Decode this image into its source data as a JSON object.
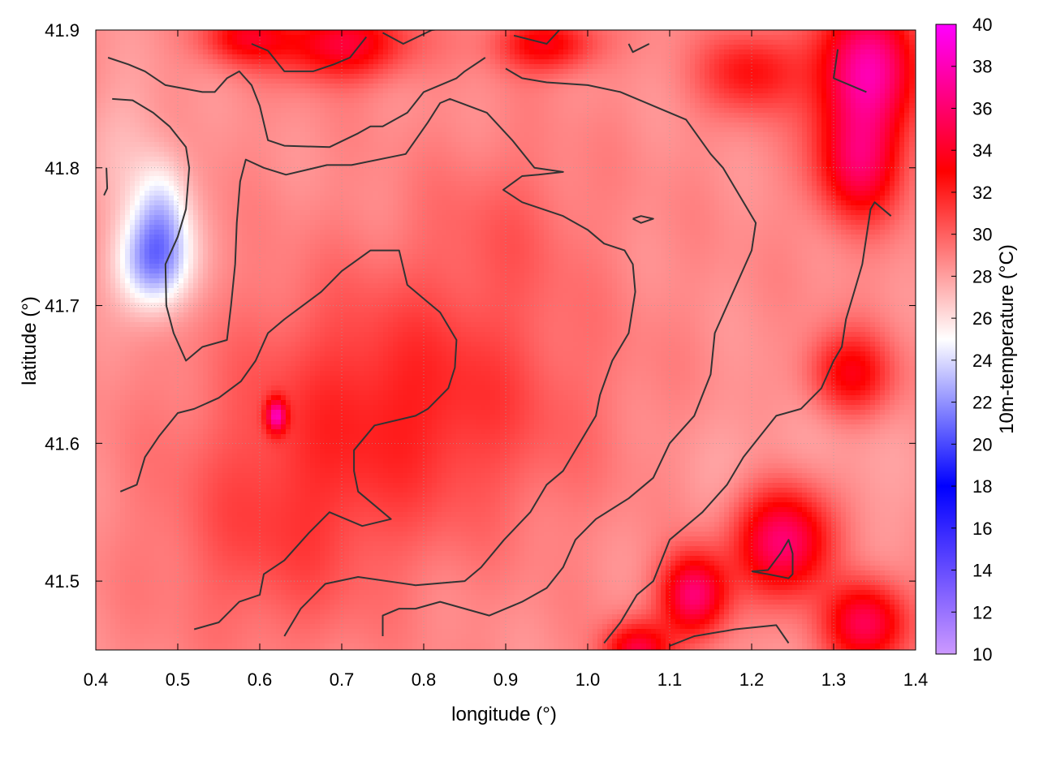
{
  "chart_data": {
    "type": "heatmap",
    "title": "",
    "xlabel": "longitude (°)",
    "ylabel": "latitude (°)",
    "colorbar_label": "10m-temperature (°C)",
    "xlim": [
      0.4,
      1.4
    ],
    "ylim": [
      41.45,
      41.9
    ],
    "x_ticks": [
      0.4,
      0.5,
      0.6,
      0.7,
      0.8,
      0.9,
      1.0,
      1.1,
      1.2,
      1.3,
      1.4
    ],
    "y_ticks": [
      41.5,
      41.6,
      41.7,
      41.8,
      41.9
    ],
    "x_tick_labels": [
      "0.4",
      "0.5",
      "0.6",
      "0.7",
      "0.8",
      "0.9",
      "1.0",
      "1.1",
      "1.2",
      "1.3",
      "1.4"
    ],
    "y_tick_labels": [
      "41.5",
      "41.6",
      "41.7",
      "41.8",
      "41.9"
    ],
    "colorbar_range": [
      10,
      40
    ],
    "colorbar_ticks": [
      10,
      12,
      14,
      16,
      18,
      20,
      22,
      24,
      26,
      28,
      30,
      32,
      34,
      36,
      38,
      40
    ],
    "colorbar_tick_labels": [
      "10",
      "12",
      "14",
      "16",
      "18",
      "20",
      "22",
      "24",
      "26",
      "28",
      "30",
      "32",
      "34",
      "36",
      "38",
      "40"
    ],
    "colorscale": [
      {
        "value": 10,
        "color": "#cc99ff"
      },
      {
        "value": 18,
        "color": "#0000ff"
      },
      {
        "value": 25,
        "color": "#ffffff"
      },
      {
        "value": 33,
        "color": "#ff0000"
      },
      {
        "value": 40,
        "color": "#ff00ff"
      }
    ],
    "grid": true,
    "contour_color": "#333333",
    "contours": [
      {
        "points": [
          [
            0.415,
            41.88
          ],
          [
            0.44,
            41.875
          ],
          [
            0.46,
            41.87
          ],
          [
            0.485,
            41.86
          ],
          [
            0.53,
            41.855
          ],
          [
            0.545,
            41.855
          ],
          [
            0.56,
            41.865
          ],
          [
            0.575,
            41.87
          ],
          [
            0.59,
            41.86
          ],
          [
            0.6,
            41.845
          ],
          [
            0.61,
            41.82
          ],
          [
            0.63,
            41.816
          ],
          [
            0.685,
            41.815
          ],
          [
            0.72,
            41.825
          ],
          [
            0.735,
            41.83
          ],
          [
            0.75,
            41.83
          ],
          [
            0.78,
            41.84
          ],
          [
            0.8,
            41.855
          ],
          [
            0.84,
            41.865
          ],
          [
            0.85,
            41.87
          ],
          [
            0.875,
            41.88
          ]
        ]
      },
      {
        "points": [
          [
            0.42,
            41.85
          ],
          [
            0.445,
            41.849
          ],
          [
            0.47,
            41.84
          ],
          [
            0.49,
            41.83
          ],
          [
            0.51,
            41.815
          ],
          [
            0.514,
            41.8
          ],
          [
            0.51,
            41.77
          ],
          [
            0.5,
            41.75
          ],
          [
            0.485,
            41.73
          ],
          [
            0.486,
            41.7
          ],
          [
            0.495,
            41.68
          ],
          [
            0.51,
            41.66
          ],
          [
            0.53,
            41.67
          ],
          [
            0.56,
            41.675
          ],
          [
            0.565,
            41.7
          ],
          [
            0.57,
            41.73
          ],
          [
            0.572,
            41.76
          ],
          [
            0.576,
            41.79
          ],
          [
            0.583,
            41.806
          ],
          [
            0.605,
            41.8
          ],
          [
            0.632,
            41.795
          ],
          [
            0.682,
            41.802
          ],
          [
            0.712,
            41.802
          ],
          [
            0.778,
            41.81
          ],
          [
            0.805,
            41.833
          ],
          [
            0.82,
            41.847
          ],
          [
            0.832,
            41.85
          ],
          [
            0.877,
            41.84
          ],
          [
            0.908,
            41.82
          ],
          [
            0.935,
            41.8
          ],
          [
            0.97,
            41.797
          ],
          [
            0.94,
            41.795
          ],
          [
            0.92,
            41.794
          ],
          [
            0.897,
            41.784
          ],
          [
            0.92,
            41.775
          ],
          [
            0.97,
            41.765
          ],
          [
            1.0,
            41.755
          ],
          [
            1.02,
            41.745
          ],
          [
            1.045,
            41.74
          ],
          [
            1.055,
            41.73
          ],
          [
            1.058,
            41.71
          ],
          [
            1.05,
            41.68
          ],
          [
            1.03,
            41.66
          ],
          [
            1.015,
            41.635
          ],
          [
            1.01,
            41.62
          ],
          [
            0.99,
            41.6
          ],
          [
            0.97,
            41.58
          ],
          [
            0.95,
            41.57
          ],
          [
            0.93,
            41.55
          ],
          [
            0.898,
            41.53
          ],
          [
            0.87,
            41.51
          ],
          [
            0.85,
            41.5
          ],
          [
            0.79,
            41.497
          ],
          [
            0.72,
            41.503
          ],
          [
            0.68,
            41.498
          ],
          [
            0.65,
            41.48
          ],
          [
            0.63,
            41.46
          ]
        ]
      },
      {
        "points": [
          [
            0.43,
            41.565
          ],
          [
            0.45,
            41.57
          ],
          [
            0.46,
            41.59
          ],
          [
            0.477,
            41.605
          ],
          [
            0.5,
            41.622
          ],
          [
            0.52,
            41.625
          ],
          [
            0.55,
            41.633
          ],
          [
            0.577,
            41.645
          ],
          [
            0.595,
            41.66
          ],
          [
            0.61,
            41.68
          ],
          [
            0.63,
            41.69
          ],
          [
            0.675,
            41.71
          ],
          [
            0.7,
            41.725
          ],
          [
            0.735,
            41.74
          ],
          [
            0.77,
            41.74
          ],
          [
            0.78,
            41.715
          ],
          [
            0.8,
            41.705
          ],
          [
            0.82,
            41.695
          ],
          [
            0.84,
            41.675
          ],
          [
            0.838,
            41.655
          ],
          [
            0.83,
            41.64
          ],
          [
            0.805,
            41.625
          ],
          [
            0.79,
            41.62
          ],
          [
            0.74,
            41.613
          ],
          [
            0.715,
            41.595
          ],
          [
            0.715,
            41.58
          ],
          [
            0.72,
            41.565
          ],
          [
            0.74,
            41.555
          ],
          [
            0.76,
            41.545
          ],
          [
            0.725,
            41.54
          ],
          [
            0.685,
            41.55
          ],
          [
            0.66,
            41.535
          ],
          [
            0.63,
            41.515
          ],
          [
            0.605,
            41.505
          ],
          [
            0.6,
            41.49
          ],
          [
            0.575,
            41.485
          ],
          [
            0.55,
            41.47
          ],
          [
            0.52,
            41.465
          ]
        ]
      },
      {
        "points": [
          [
            0.75,
            41.46
          ],
          [
            0.75,
            41.475
          ],
          [
            0.77,
            41.48
          ],
          [
            0.79,
            41.48
          ],
          [
            0.82,
            41.485
          ],
          [
            0.85,
            41.48
          ],
          [
            0.88,
            41.475
          ],
          [
            0.92,
            41.485
          ],
          [
            0.95,
            41.495
          ],
          [
            0.97,
            41.51
          ],
          [
            0.985,
            41.53
          ],
          [
            1.01,
            41.545
          ],
          [
            1.05,
            41.56
          ],
          [
            1.08,
            41.575
          ],
          [
            1.1,
            41.6
          ],
          [
            1.13,
            41.62
          ],
          [
            1.15,
            41.65
          ],
          [
            1.155,
            41.68
          ],
          [
            1.17,
            41.7
          ],
          [
            1.185,
            41.72
          ],
          [
            1.2,
            41.74
          ],
          [
            1.205,
            41.76
          ],
          [
            1.185,
            41.78
          ],
          [
            1.165,
            41.8
          ],
          [
            1.15,
            41.81
          ],
          [
            1.12,
            41.835
          ],
          [
            1.08,
            41.845
          ],
          [
            1.04,
            41.855
          ],
          [
            1.0,
            41.86
          ],
          [
            0.95,
            41.862
          ],
          [
            0.92,
            41.865
          ],
          [
            0.9,
            41.872
          ]
        ]
      },
      {
        "points": [
          [
            0.59,
            41.89
          ],
          [
            0.61,
            41.885
          ],
          [
            0.63,
            41.87
          ],
          [
            0.665,
            41.87
          ],
          [
            0.69,
            41.875
          ],
          [
            0.71,
            41.88
          ],
          [
            0.73,
            41.895
          ]
        ]
      },
      {
        "points": [
          [
            0.75,
            41.898
          ],
          [
            0.775,
            41.89
          ],
          [
            0.81,
            41.9
          ],
          [
            0.87,
            41.904
          ]
        ]
      },
      {
        "points": [
          [
            0.91,
            41.896
          ],
          [
            0.95,
            41.89
          ],
          [
            0.97,
            41.903
          ]
        ]
      },
      {
        "points": [
          [
            1.05,
            41.89
          ],
          [
            1.055,
            41.884
          ],
          [
            1.075,
            41.89
          ]
        ]
      },
      {
        "points": [
          [
            1.305,
            41.886
          ],
          [
            1.3,
            41.865
          ],
          [
            1.32,
            41.86
          ],
          [
            1.34,
            41.855
          ]
        ]
      },
      {
        "points": [
          [
            0.413,
            41.8
          ],
          [
            0.414,
            41.785
          ],
          [
            0.41,
            41.78
          ]
        ]
      },
      {
        "points": [
          [
            1.055,
            41.763
          ],
          [
            1.065,
            41.76
          ],
          [
            1.08,
            41.763
          ],
          [
            1.065,
            41.765
          ],
          [
            1.055,
            41.763
          ]
        ]
      },
      {
        "points": [
          [
            1.02,
            41.455
          ],
          [
            1.04,
            41.47
          ],
          [
            1.06,
            41.49
          ],
          [
            1.08,
            41.5
          ],
          [
            1.1,
            41.53
          ],
          [
            1.14,
            41.55
          ],
          [
            1.17,
            41.57
          ],
          [
            1.19,
            41.59
          ],
          [
            1.21,
            41.605
          ],
          [
            1.23,
            41.62
          ],
          [
            1.26,
            41.625
          ],
          [
            1.285,
            41.64
          ],
          [
            1.3,
            41.66
          ],
          [
            1.31,
            41.67
          ],
          [
            1.315,
            41.69
          ],
          [
            1.325,
            41.71
          ],
          [
            1.335,
            41.73
          ],
          [
            1.34,
            41.75
          ],
          [
            1.345,
            41.77
          ],
          [
            1.35,
            41.775
          ],
          [
            1.37,
            41.765
          ]
        ]
      },
      {
        "points": [
          [
            1.1,
            41.453
          ],
          [
            1.13,
            41.46
          ],
          [
            1.18,
            41.465
          ],
          [
            1.23,
            41.468
          ],
          [
            1.245,
            41.455
          ]
        ]
      },
      {
        "points": [
          [
            1.2,
            41.507
          ],
          [
            1.22,
            41.508
          ],
          [
            1.235,
            41.52
          ],
          [
            1.245,
            41.53
          ],
          [
            1.25,
            41.52
          ],
          [
            1.25,
            41.505
          ],
          [
            1.245,
            41.502
          ],
          [
            1.22,
            41.505
          ],
          [
            1.2,
            41.507
          ]
        ]
      }
    ]
  }
}
